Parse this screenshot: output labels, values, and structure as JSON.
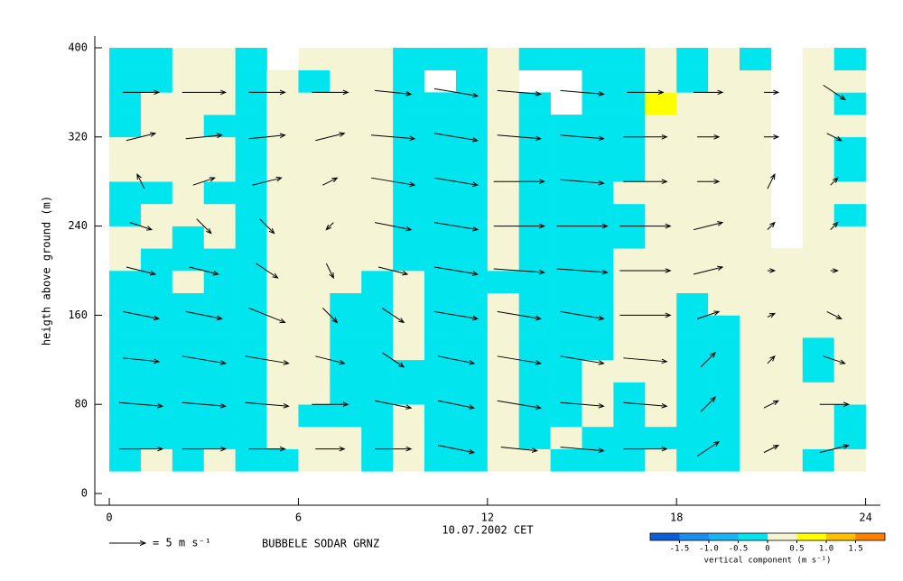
{
  "chart_data": {
    "type": "heatmap-vectors",
    "y_label": "heigth above ground (m)",
    "x_label": "10.07.2002 CET",
    "station": "BUBBELE SODAR GRNZ",
    "xlim": [
      -0.46,
      24.47
    ],
    "ylim": [
      -10.5,
      410.5
    ],
    "xticks": [
      0,
      6,
      12,
      18,
      24
    ],
    "yticks": [
      0,
      80,
      160,
      240,
      320,
      400
    ],
    "x": [
      0.5,
      1.5,
      2.5,
      3.5,
      4.5,
      5.5,
      6.5,
      7.5,
      8.5,
      9.5,
      10.5,
      11.5,
      12.5,
      13.5,
      14.5,
      15.5,
      16.5,
      17.5,
      18.5,
      19.5,
      20.5,
      21.5,
      22.5,
      23.5
    ],
    "y": [
      30,
      50,
      70,
      90,
      110,
      130,
      150,
      170,
      190,
      210,
      230,
      250,
      270,
      290,
      310,
      330,
      350,
      370,
      390
    ],
    "z": [
      [
        -0.2,
        -0.2,
        -0.2,
        -0.2,
        -0.2,
        -0.2,
        -0.2,
        -0.2,
        -0.2,
        0.2,
        0.2,
        -0.2,
        -0.2,
        0.2,
        0.2,
        -0.2,
        -0.2,
        -0.2,
        -0.2
      ],
      [
        0.2,
        -0.2,
        -0.2,
        -0.2,
        -0.2,
        -0.2,
        -0.2,
        -0.2,
        -0.2,
        -0.2,
        0.2,
        0.2,
        -0.2,
        0.2,
        0.2,
        0.2,
        0.2,
        -0.2,
        -0.2
      ],
      [
        -0.2,
        -0.2,
        -0.2,
        -0.2,
        -0.2,
        -0.2,
        -0.2,
        -0.2,
        0.2,
        -0.2,
        -0.2,
        0.2,
        0.2,
        0.2,
        0.2,
        0.2,
        0.2,
        0.2,
        0.2
      ],
      [
        0.2,
        -0.2,
        -0.2,
        -0.2,
        -0.2,
        -0.2,
        -0.2,
        -0.2,
        -0.2,
        -0.2,
        0.2,
        0.2,
        -0.2,
        0.2,
        0.2,
        -0.2,
        0.2,
        0.2,
        0.2
      ],
      [
        -0.2,
        -0.2,
        -0.2,
        -0.2,
        -0.2,
        -0.2,
        -0.2,
        -0.2,
        -0.2,
        -0.2,
        -0.2,
        -0.2,
        -0.2,
        -0.2,
        -0.2,
        -0.2,
        -0.2,
        -0.2,
        -0.2
      ],
      [
        -0.2,
        0.2,
        0.2,
        0.2,
        0.2,
        0.2,
        0.2,
        0.2,
        0.2,
        0.2,
        0.2,
        0.2,
        0.2,
        0.2,
        0.2,
        0.2,
        0.2,
        0.2,
        null
      ],
      [
        0.2,
        0.2,
        -0.2,
        0.2,
        0.2,
        0.2,
        0.2,
        0.2,
        0.2,
        0.2,
        0.2,
        0.2,
        0.2,
        0.2,
        0.2,
        0.2,
        0.2,
        -0.2,
        0.2
      ],
      [
        0.2,
        0.2,
        -0.2,
        -0.2,
        -0.2,
        -0.2,
        -0.2,
        -0.2,
        0.2,
        0.2,
        0.2,
        0.2,
        0.2,
        0.2,
        0.2,
        0.2,
        0.2,
        0.2,
        0.2
      ],
      [
        -0.2,
        -0.2,
        -0.2,
        -0.2,
        -0.2,
        -0.2,
        -0.2,
        -0.2,
        -0.2,
        0.2,
        0.2,
        0.2,
        0.2,
        0.2,
        0.2,
        0.2,
        0.2,
        0.2,
        0.2
      ],
      [
        0.2,
        0.2,
        0.2,
        -0.2,
        -0.2,
        0.2,
        0.2,
        0.2,
        0.2,
        -0.2,
        -0.2,
        -0.2,
        -0.2,
        -0.2,
        -0.2,
        -0.2,
        -0.2,
        -0.2,
        -0.2
      ],
      [
        -0.2,
        -0.2,
        -0.2,
        -0.2,
        -0.2,
        -0.2,
        -0.2,
        -0.2,
        -0.2,
        -0.2,
        -0.2,
        -0.2,
        -0.2,
        -0.2,
        -0.2,
        -0.2,
        -0.2,
        null,
        -0.2
      ],
      [
        -0.2,
        -0.2,
        -0.2,
        -0.2,
        -0.2,
        -0.2,
        -0.2,
        -0.2,
        -0.2,
        -0.2,
        -0.2,
        -0.2,
        -0.2,
        -0.2,
        -0.2,
        -0.2,
        -0.2,
        -0.2,
        -0.2
      ],
      [
        0.2,
        0.2,
        0.2,
        0.2,
        0.2,
        0.2,
        0.2,
        0.2,
        -0.2,
        0.2,
        0.2,
        0.2,
        0.2,
        0.2,
        0.2,
        0.2,
        0.2,
        0.2,
        0.2
      ],
      [
        0.2,
        -0.2,
        -0.2,
        -0.2,
        -0.2,
        -0.2,
        -0.2,
        -0.2,
        -0.2,
        -0.2,
        -0.2,
        -0.2,
        -0.2,
        -0.2,
        -0.2,
        -0.2,
        -0.2,
        null,
        -0.2
      ],
      [
        -0.2,
        0.2,
        -0.2,
        -0.2,
        -0.2,
        -0.2,
        -0.2,
        -0.2,
        -0.2,
        -0.2,
        -0.2,
        -0.2,
        -0.2,
        -0.2,
        -0.2,
        -0.2,
        null,
        null,
        -0.2
      ],
      [
        -0.2,
        -0.2,
        0.2,
        0.2,
        0.2,
        -0.2,
        -0.2,
        -0.2,
        -0.2,
        -0.2,
        -0.2,
        -0.2,
        -0.2,
        -0.2,
        -0.2,
        -0.2,
        -0.2,
        -0.2,
        -0.2
      ],
      [
        -0.2,
        -0.2,
        -0.2,
        -0.2,
        0.2,
        0.2,
        0.2,
        0.2,
        0.2,
        0.2,
        -0.2,
        -0.2,
        0.2,
        -0.2,
        -0.2,
        -0.2,
        -0.2,
        -0.2,
        -0.2
      ],
      [
        0.2,
        -0.2,
        0.2,
        0.2,
        0.2,
        0.2,
        0.2,
        0.2,
        0.2,
        0.2,
        0.2,
        0.2,
        0.2,
        0.2,
        0.2,
        0.2,
        0.6,
        0.2,
        0.2
      ],
      [
        -0.2,
        -0.2,
        -0.2,
        -0.2,
        -0.2,
        -0.2,
        -0.2,
        -0.2,
        0.2,
        0.2,
        0.2,
        0.2,
        0.2,
        0.2,
        0.2,
        0.2,
        0.2,
        -0.2,
        -0.2
      ],
      [
        -0.2,
        -0.2,
        -0.2,
        -0.2,
        -0.2,
        -0.2,
        -0.2,
        0.2,
        0.2,
        0.2,
        0.2,
        0.2,
        0.2,
        0.2,
        0.2,
        0.2,
        0.2,
        0.2,
        0.2
      ],
      [
        0.2,
        0.2,
        0.2,
        0.2,
        0.2,
        0.2,
        0.2,
        0.2,
        0.2,
        0.2,
        0.2,
        0.2,
        0.2,
        0.2,
        0.2,
        0.2,
        0.2,
        0.2,
        -0.2
      ],
      [
        0.2,
        0.2,
        0.2,
        0.2,
        0.2,
        0.2,
        0.2,
        0.2,
        0.2,
        0.2,
        null,
        null,
        null,
        null,
        null,
        null,
        null,
        null,
        null
      ],
      [
        -0.2,
        0.2,
        0.2,
        0.2,
        -0.2,
        -0.2,
        0.2,
        0.2,
        0.2,
        0.2,
        0.2,
        0.2,
        0.2,
        0.2,
        0.2,
        0.2,
        0.2,
        0.2,
        0.2
      ],
      [
        0.2,
        -0.2,
        -0.2,
        0.2,
        0.2,
        0.2,
        0.2,
        0.2,
        0.2,
        0.2,
        0.2,
        -0.2,
        0.2,
        -0.2,
        -0.2,
        0.2,
        -0.2,
        0.2,
        -0.2
      ]
    ],
    "arrow_x": [
      1,
      3,
      5,
      7,
      9,
      11,
      13,
      15,
      17,
      19,
      21,
      23
    ],
    "arrow_y": [
      40,
      80,
      120,
      160,
      200,
      240,
      280,
      320,
      360
    ],
    "u": [
      [
        6,
        6,
        5,
        5,
        4,
        3,
        -1,
        4,
        5
      ],
      [
        6,
        6,
        6,
        5,
        4,
        2,
        3,
        5,
        6
      ],
      [
        5,
        6,
        6,
        5,
        3,
        2,
        4,
        5,
        5
      ],
      [
        4,
        5,
        4,
        2,
        1,
        -1,
        2,
        4,
        5
      ],
      [
        5,
        5,
        3,
        3,
        4,
        5,
        6,
        6,
        5
      ],
      [
        5,
        5,
        5,
        6,
        6,
        6,
        6,
        6,
        6
      ],
      [
        5,
        6,
        6,
        6,
        7,
        7,
        7,
        6,
        6
      ],
      [
        6,
        6,
        6,
        6,
        7,
        7,
        6,
        6,
        6
      ],
      [
        6,
        6,
        6,
        7,
        7,
        7,
        6,
        6,
        5
      ],
      [
        3,
        2,
        2,
        3,
        4,
        4,
        3,
        3,
        4
      ],
      [
        2,
        2,
        1,
        1,
        1,
        1,
        1,
        2,
        2
      ],
      [
        4,
        4,
        3,
        2,
        1,
        1,
        1,
        2,
        3
      ]
    ],
    "v": [
      [
        0,
        -0.5,
        -0.5,
        -1,
        -1,
        -1,
        2,
        1,
        0
      ],
      [
        0,
        -0.5,
        -1,
        -1,
        -1,
        -2,
        1,
        0.5,
        0
      ],
      [
        0,
        -0.5,
        -1,
        -2,
        -2,
        -2,
        1,
        0.5,
        0
      ],
      [
        0,
        0,
        -1,
        -2,
        -2,
        -1,
        1,
        1,
        0
      ],
      [
        0,
        -1,
        -2,
        -2,
        -1,
        -1,
        -1,
        -0.5,
        -0.5
      ],
      [
        -1,
        -1,
        -1,
        -1,
        -1,
        -1,
        -1,
        -1,
        -1
      ],
      [
        -0.5,
        -1,
        -1,
        -1,
        -0.5,
        0,
        0,
        -0.5,
        -0.5
      ],
      [
        -0.5,
        -0.5,
        -1,
        -1,
        -0.5,
        0,
        -0.5,
        -0.5,
        -0.5
      ],
      [
        0,
        -0.5,
        -0.5,
        0,
        0,
        0,
        0,
        0,
        0
      ],
      [
        2,
        2,
        2,
        1,
        1,
        1,
        0,
        0,
        0
      ],
      [
        1,
        1,
        1,
        0.5,
        0,
        1,
        2,
        0,
        0
      ],
      [
        1,
        0,
        -1,
        -1,
        0,
        1,
        1,
        -1,
        -2
      ]
    ],
    "vector_key": {
      "value": 5,
      "label": "= 5 m s⁻¹"
    },
    "colorbar": {
      "label": "vertical component (m s⁻¹)",
      "bounds": [
        -2,
        -1.5,
        -1,
        -0.5,
        0,
        0.5,
        1,
        1.5,
        2
      ],
      "colors": [
        "#0a5fd8",
        "#1f8cf0",
        "#19b4f5",
        "#00e5ee",
        "#f5f5d5",
        "#ffff00",
        "#ffc000",
        "#ff8000"
      ],
      "ticks": [
        -1.5,
        {
          "value": -1,
          "label": "-1.0"
        },
        -0.5,
        0,
        0.5,
        {
          "value": 1,
          "label": "1.0"
        },
        1.5
      ]
    }
  }
}
